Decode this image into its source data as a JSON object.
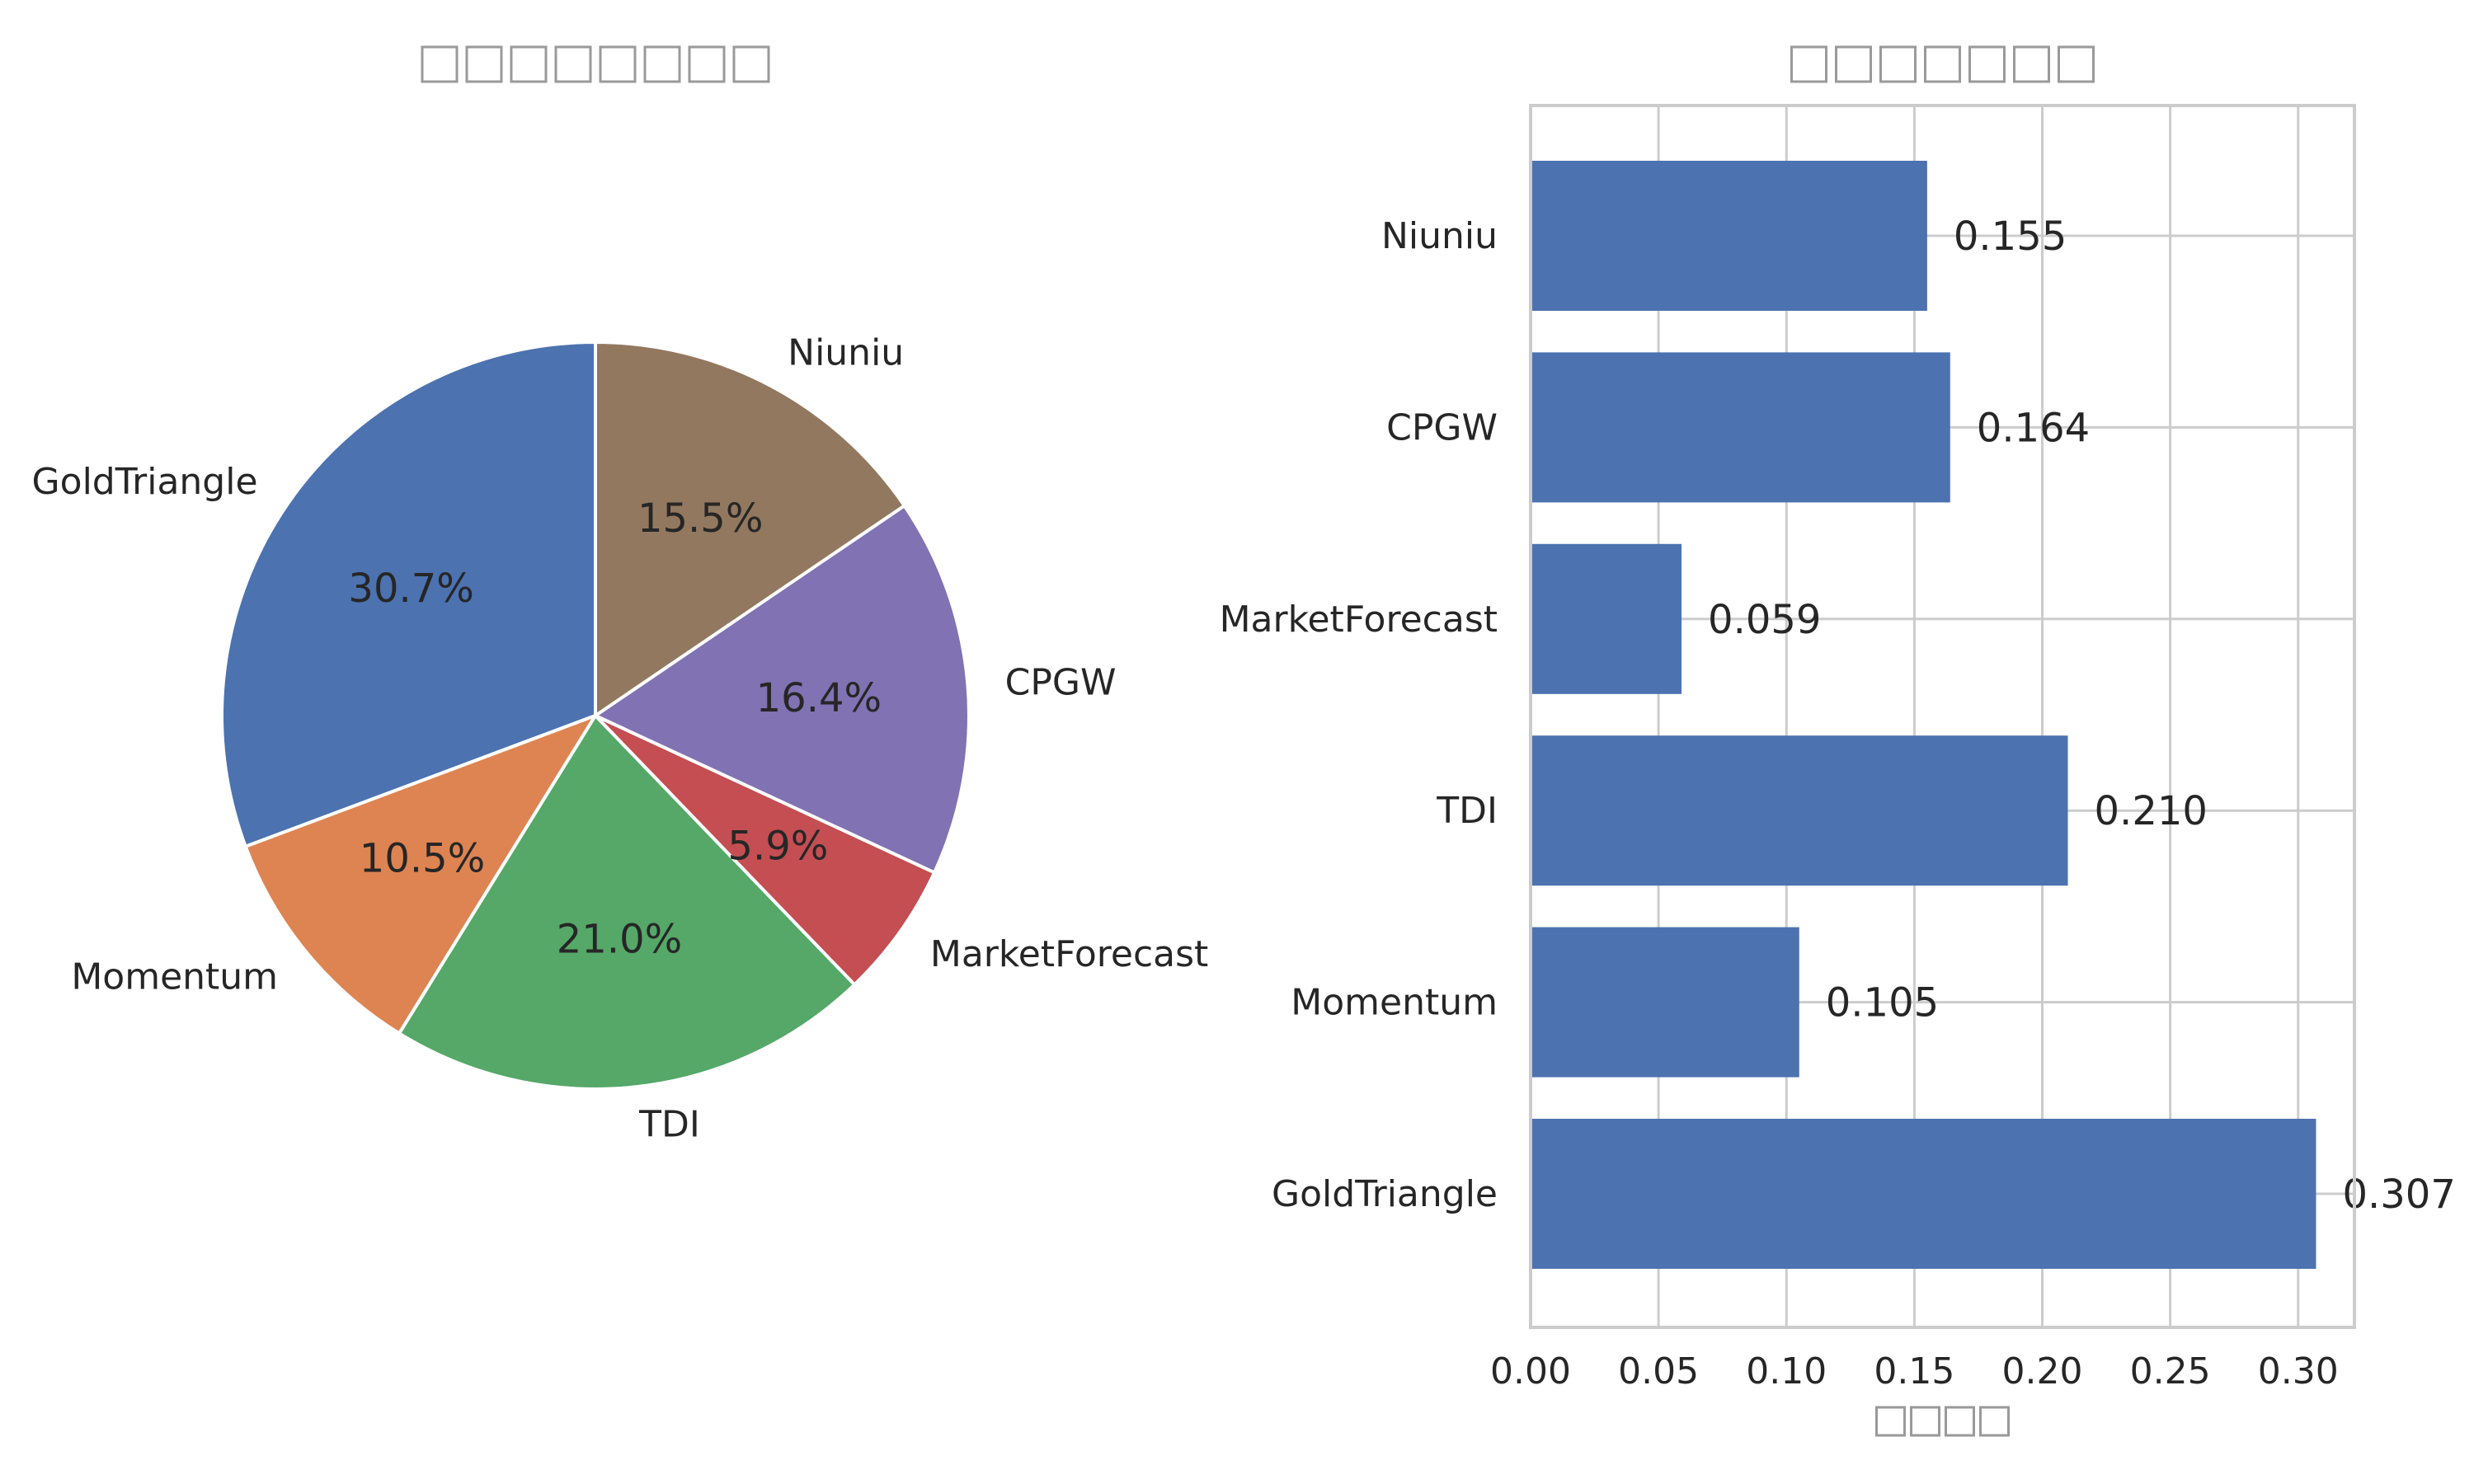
{
  "chart_data": [
    {
      "type": "pie",
      "title": "□□□□□□□□",
      "categories": [
        "GoldTriangle",
        "Momentum",
        "TDI",
        "MarketForecast",
        "CPGW",
        "Niuniu"
      ],
      "values": [
        0.307,
        0.105,
        0.21,
        0.059,
        0.164,
        0.155
      ],
      "percent_labels": [
        "30.7%",
        "10.5%",
        "21.0%",
        "5.9%",
        "16.4%",
        "15.5%"
      ],
      "colors": [
        "#4c72b0",
        "#dd8452",
        "#55a868",
        "#c44e52",
        "#8172b3",
        "#937860"
      ],
      "start_angle_deg": 90,
      "direction": "counterclockwise"
    },
    {
      "type": "bar",
      "orientation": "horizontal",
      "title": "□□□□□□□",
      "xlabel": "□□□□",
      "ylabel": "",
      "categories": [
        "GoldTriangle",
        "Momentum",
        "TDI",
        "MarketForecast",
        "CPGW",
        "Niuniu"
      ],
      "values": [
        0.307,
        0.105,
        0.21,
        0.059,
        0.164,
        0.155
      ],
      "value_labels": [
        "0.307",
        "0.105",
        "0.210",
        "0.059",
        "0.164",
        "0.155"
      ],
      "xlim": [
        0,
        0.322
      ],
      "xticks": [
        0.0,
        0.05,
        0.1,
        0.15,
        0.2,
        0.25,
        0.3
      ],
      "xtick_labels": [
        "0.00",
        "0.05",
        "0.10",
        "0.15",
        "0.20",
        "0.25",
        "0.30"
      ],
      "bar_color": "#4c72b0",
      "grid": true
    }
  ]
}
